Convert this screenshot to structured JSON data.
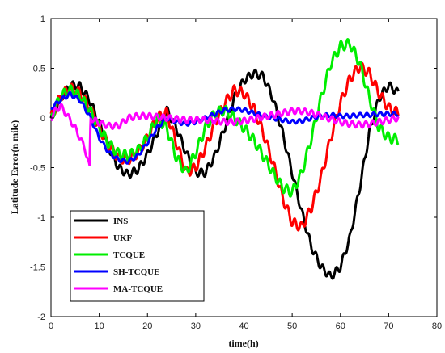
{
  "chart_data": {
    "type": "line",
    "title": "",
    "xlabel": "time(h)",
    "ylabel": "Latitude Error(n mile)",
    "xlim": [
      0,
      80
    ],
    "ylim": [
      -2,
      1
    ],
    "xticks": [
      0,
      10,
      20,
      30,
      40,
      50,
      60,
      70,
      80
    ],
    "yticks": [
      1,
      0.5,
      0,
      -0.5,
      -1,
      -1.5,
      -2
    ],
    "ytick_labels": [
      "1",
      "0.5",
      "0",
      "-0.5",
      "-1",
      "-1.5",
      "-2"
    ],
    "grid": false,
    "legend_position": "lower-left",
    "series": [
      {
        "name": "INS",
        "color": "#000000",
        "x": [
          0,
          2,
          4,
          6,
          8,
          10,
          12,
          14,
          16,
          18,
          20,
          22,
          24,
          26,
          28,
          30,
          32,
          34,
          36,
          38,
          40,
          42,
          44,
          46,
          48,
          50,
          52,
          54,
          56,
          58,
          60,
          62,
          64,
          66,
          68,
          70,
          72
        ],
        "y": [
          0,
          0.2,
          0.33,
          0.32,
          0.18,
          -0.05,
          -0.3,
          -0.5,
          -0.57,
          -0.52,
          -0.37,
          -0.15,
          0.08,
          -0.1,
          -0.35,
          -0.55,
          -0.55,
          -0.38,
          -0.1,
          0.2,
          0.38,
          0.45,
          0.42,
          0.2,
          -0.15,
          -0.55,
          -0.95,
          -1.3,
          -1.5,
          -1.6,
          -1.5,
          -1.2,
          -0.7,
          -0.15,
          0.2,
          0.33,
          0.25
        ],
        "oscillation": 0.04
      },
      {
        "name": "UKF",
        "color": "#ff0000",
        "x": [
          0,
          2,
          4,
          6,
          8,
          10,
          12,
          14,
          16,
          18,
          20,
          22,
          24,
          26,
          28,
          30,
          32,
          34,
          36,
          38,
          40,
          42,
          44,
          46,
          48,
          50,
          52,
          54,
          56,
          58,
          60,
          62,
          64,
          66,
          68,
          70,
          72
        ],
        "y": [
          0,
          0.22,
          0.3,
          0.25,
          0.1,
          -0.1,
          -0.28,
          -0.4,
          -0.42,
          -0.35,
          -0.2,
          0,
          0.05,
          -0.25,
          -0.55,
          -0.5,
          -0.3,
          -0.05,
          0.15,
          0.28,
          0.25,
          0.1,
          -0.15,
          -0.45,
          -0.8,
          -1.05,
          -1.1,
          -0.9,
          -0.6,
          -0.2,
          0.15,
          0.4,
          0.52,
          0.45,
          0.25,
          0.1,
          0.05
        ],
        "oscillation": 0.05
      },
      {
        "name": "TCQUE",
        "color": "#00ee00",
        "x": [
          0,
          2,
          4,
          6,
          8,
          10,
          12,
          14,
          16,
          18,
          20,
          22,
          24,
          26,
          28,
          30,
          32,
          34,
          36,
          38,
          40,
          42,
          44,
          46,
          48,
          50,
          52,
          54,
          56,
          58,
          60,
          62,
          64,
          66,
          68,
          70,
          72
        ],
        "y": [
          0,
          0.22,
          0.28,
          0.22,
          0.08,
          -0.1,
          -0.26,
          -0.36,
          -0.38,
          -0.33,
          -0.2,
          0,
          -0.1,
          -0.4,
          -0.55,
          -0.35,
          -0.1,
          0.05,
          0.08,
          0,
          -0.1,
          -0.22,
          -0.38,
          -0.55,
          -0.7,
          -0.75,
          -0.55,
          -0.2,
          0.2,
          0.55,
          0.72,
          0.75,
          0.55,
          0.2,
          -0.1,
          -0.2,
          -0.22
        ],
        "oscillation": 0.05
      },
      {
        "name": "SH-TCQUE",
        "color": "#0000ff",
        "x": [
          0,
          2,
          4,
          6,
          8,
          10,
          12,
          14,
          16,
          18,
          20,
          22,
          24,
          26,
          28,
          30,
          32,
          34,
          36,
          38,
          40,
          42,
          44,
          46,
          48,
          50,
          52,
          54,
          56,
          58,
          60,
          62,
          64,
          66,
          68,
          70,
          72
        ],
        "y": [
          0.1,
          0.18,
          0.24,
          0.18,
          0.02,
          -0.2,
          -0.35,
          -0.42,
          -0.44,
          -0.38,
          -0.25,
          -0.1,
          0,
          -0.04,
          -0.06,
          -0.04,
          0,
          0.04,
          0.08,
          0.09,
          0.08,
          0.05,
          0.02,
          0,
          -0.02,
          -0.04,
          -0.03,
          0,
          0.02,
          0.03,
          0.02,
          0.02,
          0.03,
          0.03,
          0.04,
          0.04,
          0.04
        ],
        "oscillation": 0.02
      },
      {
        "name": "MA-TCQUE",
        "color": "#ff00ff",
        "x": [
          0,
          1,
          2,
          3,
          4,
          5,
          6,
          7,
          8,
          8.2,
          10,
          12,
          14,
          16,
          18,
          20,
          22,
          24,
          26,
          28,
          30,
          32,
          34,
          36,
          38,
          40,
          42,
          44,
          46,
          48,
          50,
          52,
          54,
          56,
          58,
          60,
          62,
          64,
          66,
          68,
          70,
          72
        ],
        "y": [
          0,
          0.08,
          0.12,
          0.05,
          -0.02,
          -0.1,
          -0.2,
          -0.3,
          -0.5,
          0,
          -0.05,
          -0.08,
          -0.08,
          0,
          0.02,
          0.02,
          0.01,
          0,
          -0.01,
          -0.02,
          -0.02,
          -0.02,
          -0.03,
          -0.04,
          -0.04,
          -0.03,
          -0.01,
          0.01,
          0.03,
          0.05,
          0.07,
          0.07,
          0.05,
          0.02,
          -0.01,
          -0.04,
          -0.06,
          -0.07,
          -0.06,
          -0.04,
          -0.02,
          0
        ],
        "oscillation": 0.03
      }
    ]
  }
}
